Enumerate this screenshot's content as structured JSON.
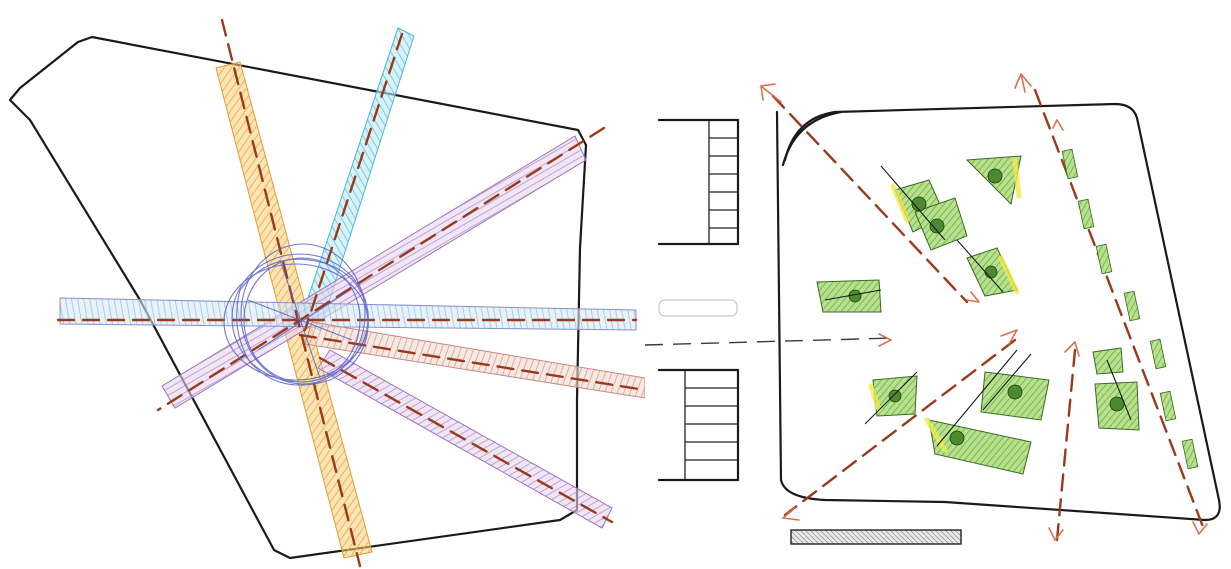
{
  "figure": {
    "left_sketch": {
      "description_id": "radial-corridor-sketch",
      "corridor_colors": [
        "#f1b84a",
        "#7dd3e8",
        "#b98ac8",
        "#d9a6a0",
        "#b98ac8",
        "#f0a090",
        "#9c8ad0"
      ],
      "axis_color": "#9a3a1c",
      "hub_color": "#5b62c9"
    },
    "right_sketch": {
      "description_id": "plaza-planting-plan",
      "planting_color": "#7cc04a",
      "highlight_color": "#f2ea4a",
      "arrow_color": "#d9714f"
    }
  }
}
